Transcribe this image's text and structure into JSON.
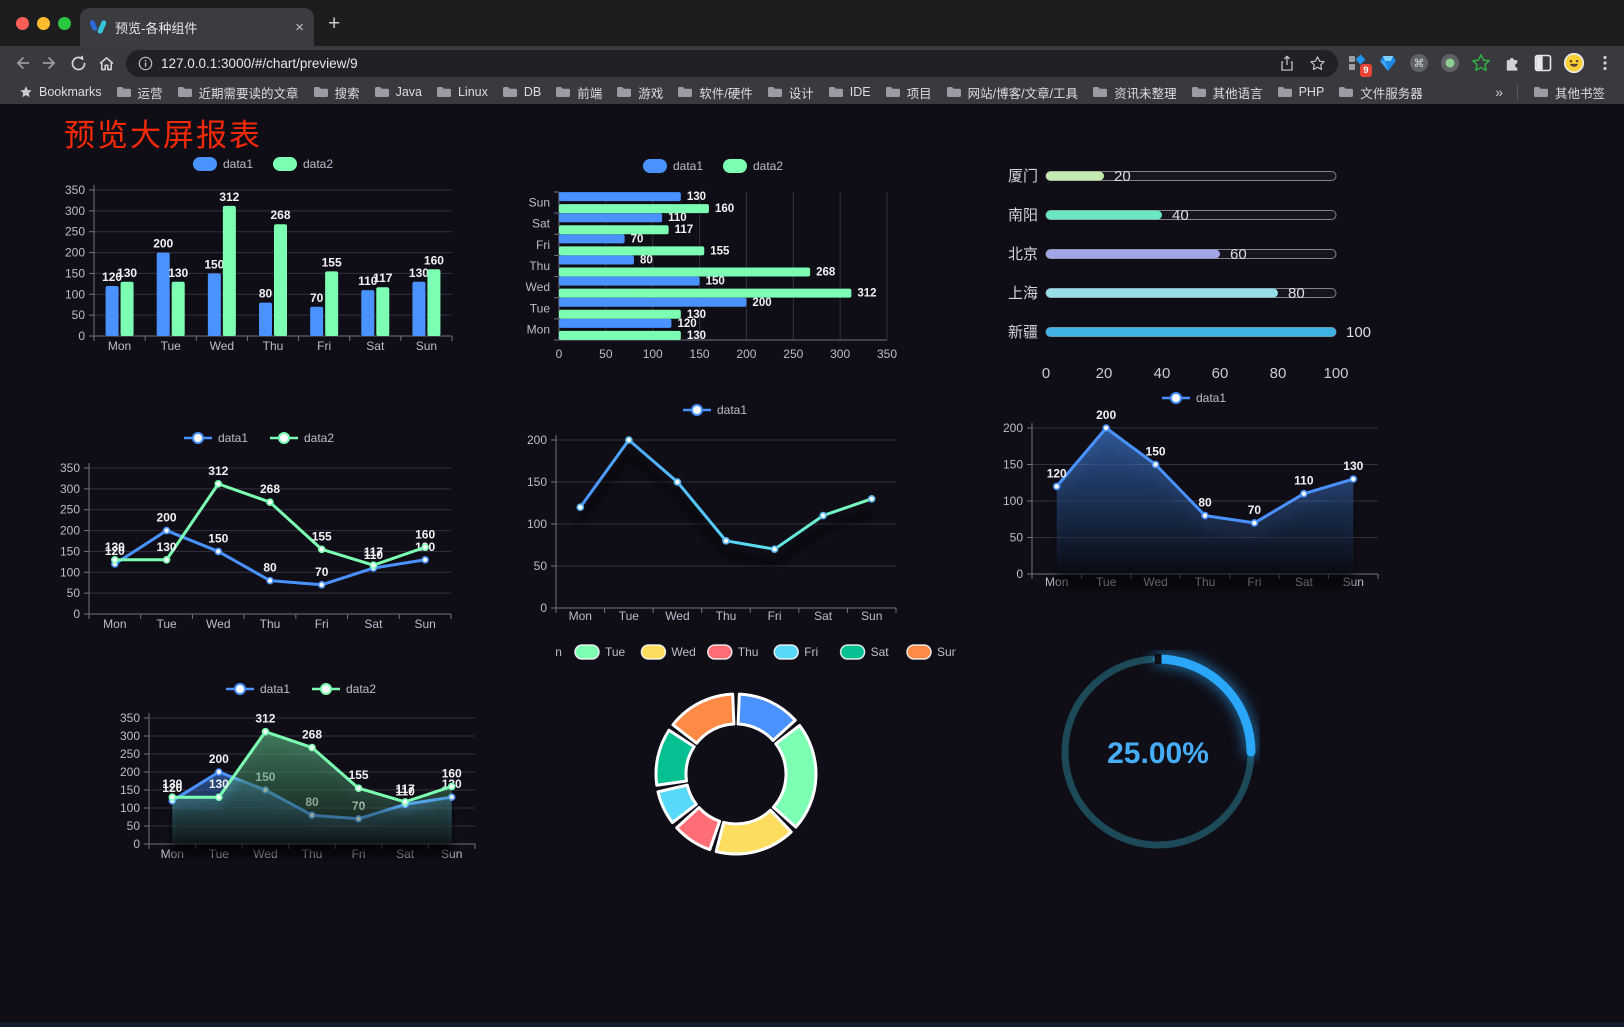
{
  "browser": {
    "tab_title": "预览-各种组件",
    "url": "127.0.0.1:3000/#/chart/preview/9",
    "extension_badge": "9",
    "bookmarks_bar": {
      "label": "Bookmarks",
      "folders": [
        "运营",
        "近期需要读的文章",
        "搜索",
        "Java",
        "Linux",
        "DB",
        "前端",
        "游戏",
        "软件/硬件",
        "设计",
        "IDE",
        "项目",
        "网站/博客/文章/工具",
        "资讯未整理",
        "其他语言",
        "PHP",
        "文件服务器"
      ],
      "overflow": "»",
      "other_bookmarks": "其他书签"
    }
  },
  "page": {
    "title": "预览大屏报表",
    "title_color": "#f42908",
    "background": "#0f0e17"
  },
  "chart_data": [
    {
      "id": "c1",
      "type": "bar",
      "title": "",
      "categories": [
        "Mon",
        "Tue",
        "Wed",
        "Thu",
        "Fri",
        "Sat",
        "Sun"
      ],
      "series": [
        {
          "name": "data1",
          "color": "#4992ff",
          "values": [
            120,
            200,
            150,
            80,
            70,
            110,
            130
          ]
        },
        {
          "name": "data2",
          "color": "#7cffb2",
          "values": [
            130,
            130,
            312,
            268,
            155,
            117,
            160
          ]
        }
      ],
      "ylim": [
        0,
        350
      ],
      "ystep": 50,
      "legend_position": "top",
      "grid": true,
      "value_labels": true
    },
    {
      "id": "c2",
      "type": "bar",
      "orientation": "horizontal",
      "categories": [
        "Mon",
        "Tue",
        "Wed",
        "Thu",
        "Fri",
        "Sat",
        "Sun"
      ],
      "series": [
        {
          "name": "data1",
          "color": "#4992ff",
          "values": [
            120,
            200,
            150,
            80,
            70,
            110,
            130
          ]
        },
        {
          "name": "data2",
          "color": "#7cffb2",
          "values": [
            130,
            130,
            312,
            268,
            155,
            117,
            160
          ]
        }
      ],
      "xlim": [
        0,
        350
      ],
      "xstep": 50,
      "legend_position": "top",
      "grid": true,
      "value_labels": true
    },
    {
      "id": "c3",
      "type": "bar",
      "orientation": "horizontal",
      "variant": "progress",
      "categories": [
        "厦门",
        "南阳",
        "北京",
        "上海",
        "新疆"
      ],
      "values": [
        20,
        40,
        60,
        80,
        100
      ],
      "colors": [
        "#c4ebad",
        "#6be6c1",
        "#a0a7e6",
        "#96dee8",
        "#3fb1e3"
      ],
      "xlim": [
        0,
        100
      ],
      "xticks": [
        0,
        20,
        40,
        60,
        80,
        100
      ],
      "value_labels": true
    },
    {
      "id": "c4",
      "type": "line",
      "categories": [
        "Mon",
        "Tue",
        "Wed",
        "Thu",
        "Fri",
        "Sat",
        "Sun"
      ],
      "series": [
        {
          "name": "data1",
          "color": "#4992ff",
          "values": [
            120,
            200,
            150,
            80,
            70,
            110,
            130
          ]
        },
        {
          "name": "data2",
          "color": "#7cffb2",
          "values": [
            130,
            130,
            312,
            268,
            155,
            117,
            160
          ]
        }
      ],
      "ylim": [
        0,
        350
      ],
      "ystep": 50,
      "legend_position": "top",
      "grid": true,
      "value_labels": true
    },
    {
      "id": "c5",
      "type": "line",
      "variant": "gradient-shadow",
      "categories": [
        "Mon",
        "Tue",
        "Wed",
        "Thu",
        "Fri",
        "Sat",
        "Sun"
      ],
      "series": [
        {
          "name": "data1",
          "gradient": [
            "#4992ff",
            "#58d9f9",
            "#7cffb2"
          ],
          "values": [
            120,
            200,
            150,
            80,
            70,
            110,
            130
          ]
        }
      ],
      "ylim": [
        0,
        200
      ],
      "ystep": 50,
      "legend_position": "top",
      "grid": true,
      "value_labels": false
    },
    {
      "id": "c6",
      "type": "area",
      "categories": [
        "Mon",
        "Tue",
        "Wed",
        "Thu",
        "Fri",
        "Sat",
        "Sun"
      ],
      "series": [
        {
          "name": "data1",
          "color": "#4992ff",
          "values": [
            120,
            200,
            150,
            80,
            70,
            110,
            130
          ]
        }
      ],
      "ylim": [
        0,
        200
      ],
      "ystep": 50,
      "legend_position": "top",
      "grid": true,
      "value_labels": true
    },
    {
      "id": "c7",
      "type": "area",
      "categories": [
        "Mon",
        "Tue",
        "Wed",
        "Thu",
        "Fri",
        "Sat",
        "Sun"
      ],
      "series": [
        {
          "name": "data1",
          "color": "#4992ff",
          "values": [
            120,
            200,
            150,
            80,
            70,
            110,
            130
          ]
        },
        {
          "name": "data2",
          "color": "#7cffb2",
          "values": [
            130,
            130,
            312,
            268,
            155,
            117,
            160
          ]
        }
      ],
      "ylim": [
        0,
        350
      ],
      "ystep": 50,
      "legend_position": "top",
      "grid": true,
      "value_labels": true
    },
    {
      "id": "c8",
      "type": "pie",
      "variant": "donut-rounded",
      "categories": [
        "Mon",
        "Tue",
        "Wed",
        "Thu",
        "Fri",
        "Sat",
        "Sun"
      ],
      "values": [
        120,
        200,
        150,
        80,
        70,
        110,
        130
      ],
      "colors": [
        "#4992ff",
        "#7cffb2",
        "#fddd60",
        "#ff6e76",
        "#58d9f9",
        "#05c091",
        "#ff8a45"
      ],
      "legend_position": "top"
    },
    {
      "id": "c9",
      "type": "gauge",
      "variant": "ring-progress",
      "value": 25,
      "display": "25.00%",
      "color": "#2aa7f8",
      "track_color": "#1d4a58",
      "text_color": "#46aef7"
    }
  ]
}
